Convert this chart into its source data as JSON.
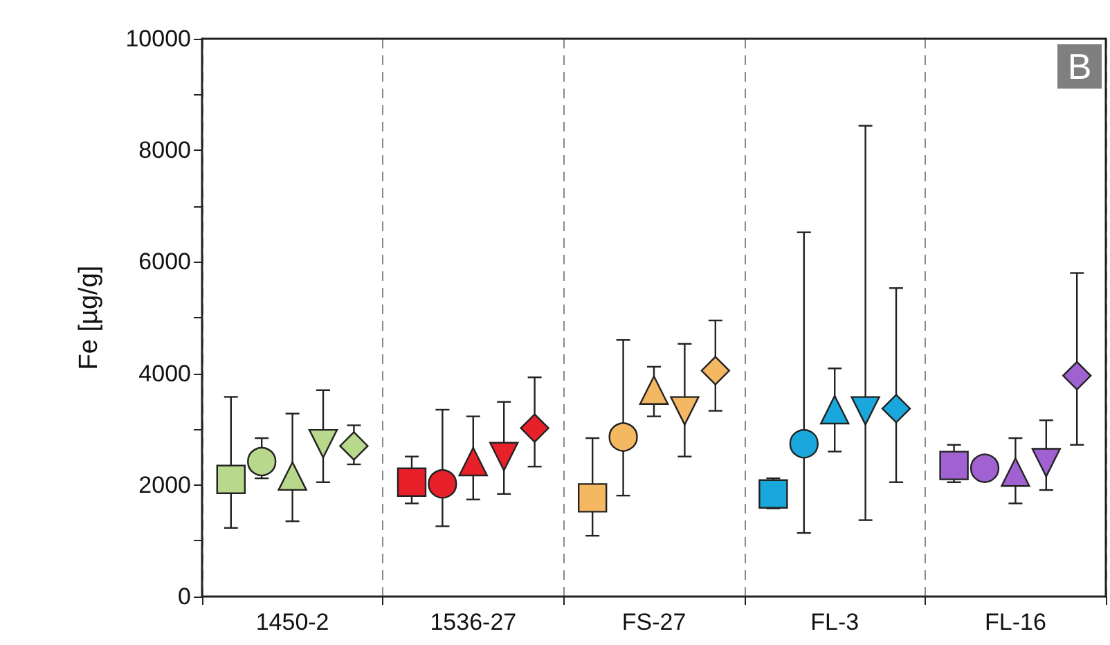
{
  "chart_data": {
    "type": "scatter",
    "ylabel": "Fe [µg/g]",
    "annotations": [
      "B"
    ],
    "categories": [
      "1450-2",
      "1536-27",
      "FS-27",
      "FL-3",
      "FL-16"
    ],
    "ylim": [
      0,
      10000
    ],
    "yticks": [
      0,
      {
        "value": 1000,
        "label": null
      },
      2000,
      {
        "value": 3000,
        "label": null
      },
      4000,
      {
        "value": 5000,
        "label": null
      },
      6000,
      {
        "value": 7000,
        "label": null
      },
      8000,
      {
        "value": 9000,
        "label": null
      },
      10000
    ],
    "grid": "x",
    "series": [
      {
        "marker": "square",
        "colors": [
          "#b8d88c",
          "#e8202a",
          "#f5b862",
          "#1aa8dc",
          "#9f62d0"
        ],
        "values": [
          2100,
          2050,
          1770,
          1840,
          2350
        ],
        "errors": [
          [
            1230,
            3580
          ],
          [
            1670,
            2510
          ],
          [
            1090,
            2840
          ],
          [
            1580,
            2120
          ],
          [
            2050,
            2720
          ]
        ]
      },
      {
        "marker": "circle",
        "colors": [
          "#b8d88c",
          "#e8202a",
          "#f5b862",
          "#1aa8dc",
          "#9f62d0"
        ],
        "values": [
          2420,
          2020,
          2860,
          2740,
          2300
        ],
        "errors": [
          [
            2120,
            2840
          ],
          [
            1260,
            3350
          ],
          [
            1810,
            4600
          ],
          [
            1140,
            6530
          ],
          null
        ]
      },
      {
        "marker": "triangle",
        "colors": [
          "#b8d88c",
          "#e8202a",
          "#f5b862",
          "#1aa8dc",
          "#9f62d0"
        ],
        "values": [
          2160,
          2420,
          3700,
          3350,
          2230
        ],
        "errors": [
          [
            1350,
            3280
          ],
          [
            1740,
            3230
          ],
          [
            3230,
            4120
          ],
          [
            2600,
            4090
          ],
          [
            1670,
            2840
          ]
        ]
      },
      {
        "marker": "triangle-down",
        "colors": [
          "#b8d88c",
          "#e8202a",
          "#f5b862",
          "#1aa8dc",
          "#9f62d0"
        ],
        "values": [
          2740,
          2510,
          3330,
          3330,
          2400
        ],
        "errors": [
          [
            2050,
            3700
          ],
          [
            1840,
            3490
          ],
          [
            2510,
            4530
          ],
          [
            1370,
            8440
          ],
          [
            1910,
            3160
          ]
        ]
      },
      {
        "marker": "diamond",
        "colors": [
          "#b8d88c",
          "#e8202a",
          "#f5b862",
          "#1aa8dc",
          "#9f62d0"
        ],
        "values": [
          2700,
          3020,
          4050,
          3370,
          3960
        ],
        "errors": [
          [
            2370,
            3070
          ],
          [
            2330,
            3930
          ],
          [
            3330,
            4950
          ],
          [
            2050,
            5530
          ],
          [
            2720,
            5800
          ]
        ]
      }
    ]
  }
}
